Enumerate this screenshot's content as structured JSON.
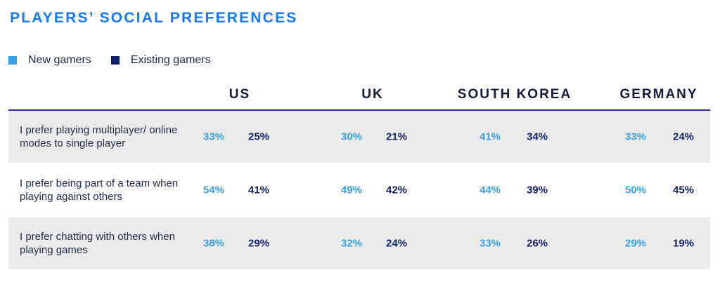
{
  "title": "PLAYERS’ SOCIAL PREFERENCES",
  "colors": {
    "title": "#1877f2",
    "new": "#36a0e8",
    "existing": "#0f1f6b",
    "rule": "#2a2a8c",
    "row_shade": "#ebebeb"
  },
  "chart_data": {
    "type": "table",
    "title": "PLAYERS’ SOCIAL PREFERENCES",
    "legend": [
      {
        "name": "New gamers",
        "color": "#36a0e8"
      },
      {
        "name": "Existing gamers",
        "color": "#0f1f6b"
      }
    ],
    "countries": [
      "US",
      "UK",
      "SOUTH KOREA",
      "GERMANY"
    ],
    "rows": [
      {
        "label": "I prefer playing multiplayer/ online modes to single player",
        "values": [
          [
            "33%",
            "25%"
          ],
          [
            "30%",
            "21%"
          ],
          [
            "41%",
            "34%"
          ],
          [
            "33%",
            "24%"
          ]
        ]
      },
      {
        "label": "I prefer being part of a team when playing against others",
        "values": [
          [
            "54%",
            "41%"
          ],
          [
            "49%",
            "42%"
          ],
          [
            "44%",
            "39%"
          ],
          [
            "50%",
            "45%"
          ]
        ]
      },
      {
        "label": "I prefer chatting with others when playing games",
        "values": [
          [
            "38%",
            "29%"
          ],
          [
            "32%",
            "24%"
          ],
          [
            "33%",
            "26%"
          ],
          [
            "29%",
            "19%"
          ]
        ]
      }
    ]
  }
}
